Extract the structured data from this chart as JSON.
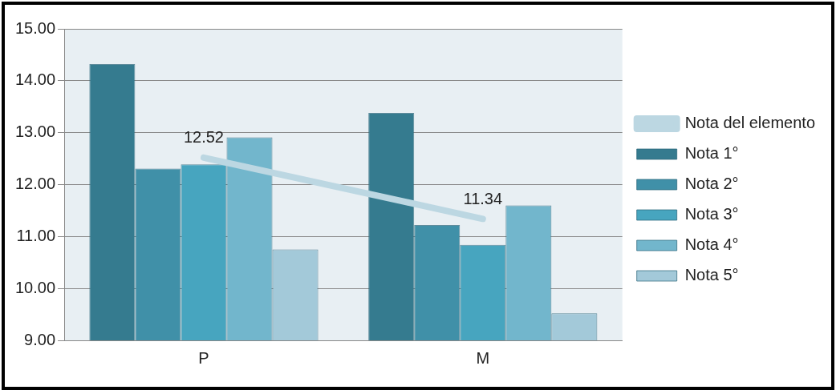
{
  "chart_data": {
    "type": "bar",
    "categories": [
      "P",
      "M"
    ],
    "series": [
      {
        "name": "Nota 1°",
        "color": "#357b8f",
        "values": [
          14.32,
          13.38
        ]
      },
      {
        "name": "Nota 2°",
        "color": "#4090a8",
        "values": [
          12.31,
          11.22
        ]
      },
      {
        "name": "Nota 3°",
        "color": "#47a5bf",
        "values": [
          12.39,
          10.84
        ]
      },
      {
        "name": "Nota 4°",
        "color": "#72b6cc",
        "values": [
          12.91,
          11.6
        ]
      },
      {
        "name": "Nota 5°",
        "color": "#a3c9d9",
        "values": [
          10.75,
          9.52
        ]
      },
      {
        "name": "Nota del elemento",
        "type": "line",
        "color": "#bcd7e2",
        "values": [
          12.52,
          11.34
        ],
        "value_labels": [
          "12.52",
          "11.34"
        ]
      }
    ],
    "ylim": [
      9,
      15
    ],
    "yticks": [
      {
        "value": 9,
        "label": "9.00"
      },
      {
        "value": 10,
        "label": "10.00"
      },
      {
        "value": 11,
        "label": "11.00"
      },
      {
        "value": 12,
        "label": "12.00"
      },
      {
        "value": 13,
        "label": "13.00"
      },
      {
        "value": 14,
        "label": "14.00"
      },
      {
        "value": 15,
        "label": "15.00"
      }
    ],
    "grid": "y",
    "legend": "right",
    "marker": "none"
  }
}
